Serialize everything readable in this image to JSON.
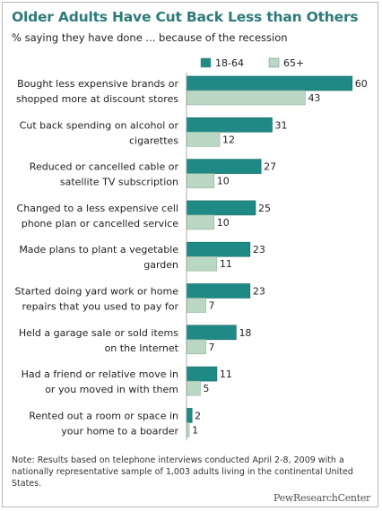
{
  "chart_data": {
    "type": "bar",
    "orientation": "horizontal",
    "title": "Older Adults Have Cut Back Less than Others",
    "subtitle": "% saying they have done ... because of the recession",
    "categories": [
      [
        "Bought less expensive brands or",
        "shopped more at discount stores"
      ],
      [
        "Cut back spending on alcohol or",
        "cigarettes"
      ],
      [
        "Reduced or cancelled cable or",
        "satellite TV subscription"
      ],
      [
        "Changed to a less expensive cell",
        "phone plan or cancelled service"
      ],
      [
        "Made plans to plant a vegetable",
        "garden"
      ],
      [
        "Started doing yard work or home",
        "repairs that you used to pay for"
      ],
      [
        "Held a garage sale or sold items",
        "on the Internet"
      ],
      [
        "Had a friend or relative move in",
        "or you moved in with them"
      ],
      [
        "Rented out a room or space in",
        "your home to a boarder"
      ]
    ],
    "series": [
      {
        "name": "18-64",
        "color": "#1f8a85",
        "values": [
          60,
          31,
          27,
          25,
          23,
          23,
          18,
          11,
          2
        ]
      },
      {
        "name": "65+",
        "color": "#b9d7c2",
        "values": [
          43,
          12,
          10,
          10,
          11,
          7,
          7,
          5,
          1
        ]
      }
    ],
    "xlim": [
      0,
      60
    ],
    "grid": false,
    "legend_placement": "top-right",
    "xlabel": "",
    "ylabel": ""
  },
  "note": "Note: Results based on telephone interviews conducted April 2-8, 2009 with a nationally representative sample of 1,003 adults living in the continental United States.",
  "brand": "PewResearchCenter"
}
